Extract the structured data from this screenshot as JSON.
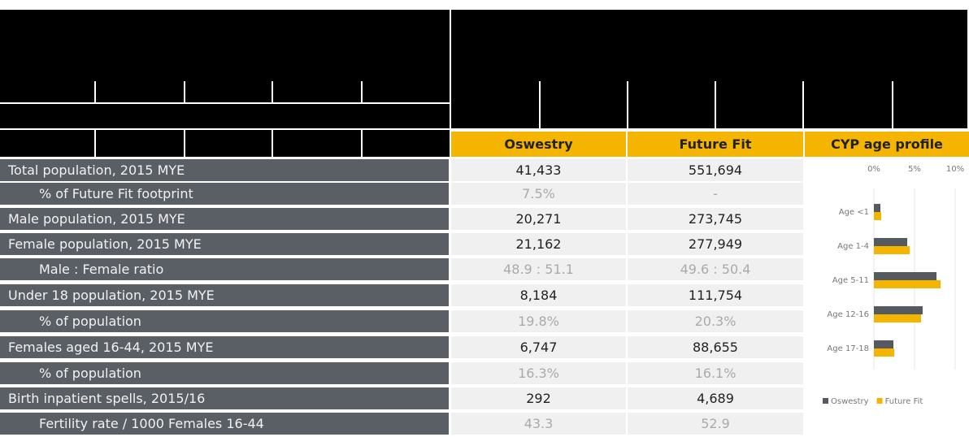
{
  "table": {
    "headers": [
      "Oswestry",
      "Future Fit"
    ],
    "rows": [
      [
        "Total population, 2015 MYE",
        "41,433",
        "551,694"
      ],
      [
        "% of Future Fit footprint",
        "7.5%",
        "-"
      ],
      [
        "Male population, 2015 MYE",
        "20,271",
        "273,745"
      ],
      [
        "Female population, 2015 MYE",
        "21,162",
        "277,949"
      ],
      [
        "Male : Female ratio",
        "48.9 : 51.1",
        "49.6 : 50.4"
      ],
      [
        "Under 18 population, 2015 MYE",
        "8,184",
        "111,754"
      ],
      [
        "% of population",
        "19.8%",
        "20.3%"
      ],
      [
        "Females aged 16-44, 2015 MYE",
        "6,747",
        "88,655"
      ],
      [
        "% of population",
        "16.3%",
        "16.1%"
      ],
      [
        "Birth inpatient spells, 2015/16",
        "292",
        "4,689"
      ],
      [
        "Fertility rate / 1000 Females 16-44",
        "43.3",
        "52.9"
      ]
    ]
  },
  "chart": {
    "type": "bar",
    "title": "CYP age profile",
    "categories": [
      "Age <1",
      "Age 1-4",
      "Age 5-11",
      "Age 12-16",
      "Age 17-18"
    ],
    "series": [
      {
        "name": "Oswestry",
        "color": "#555a60",
        "values": [
          0.8,
          4.1,
          7.7,
          6.0,
          2.4
        ]
      },
      {
        "name": "Future Fit",
        "color": "#f5b400",
        "values": [
          0.9,
          4.4,
          8.2,
          5.8,
          2.5
        ]
      }
    ],
    "xlim": [
      0,
      10
    ],
    "xticks": [
      {
        "value": 0,
        "label": "0%"
      },
      {
        "value": 5,
        "label": "5%"
      },
      {
        "value": 10,
        "label": "10%"
      }
    ],
    "grid": true,
    "legend": "bottom"
  }
}
